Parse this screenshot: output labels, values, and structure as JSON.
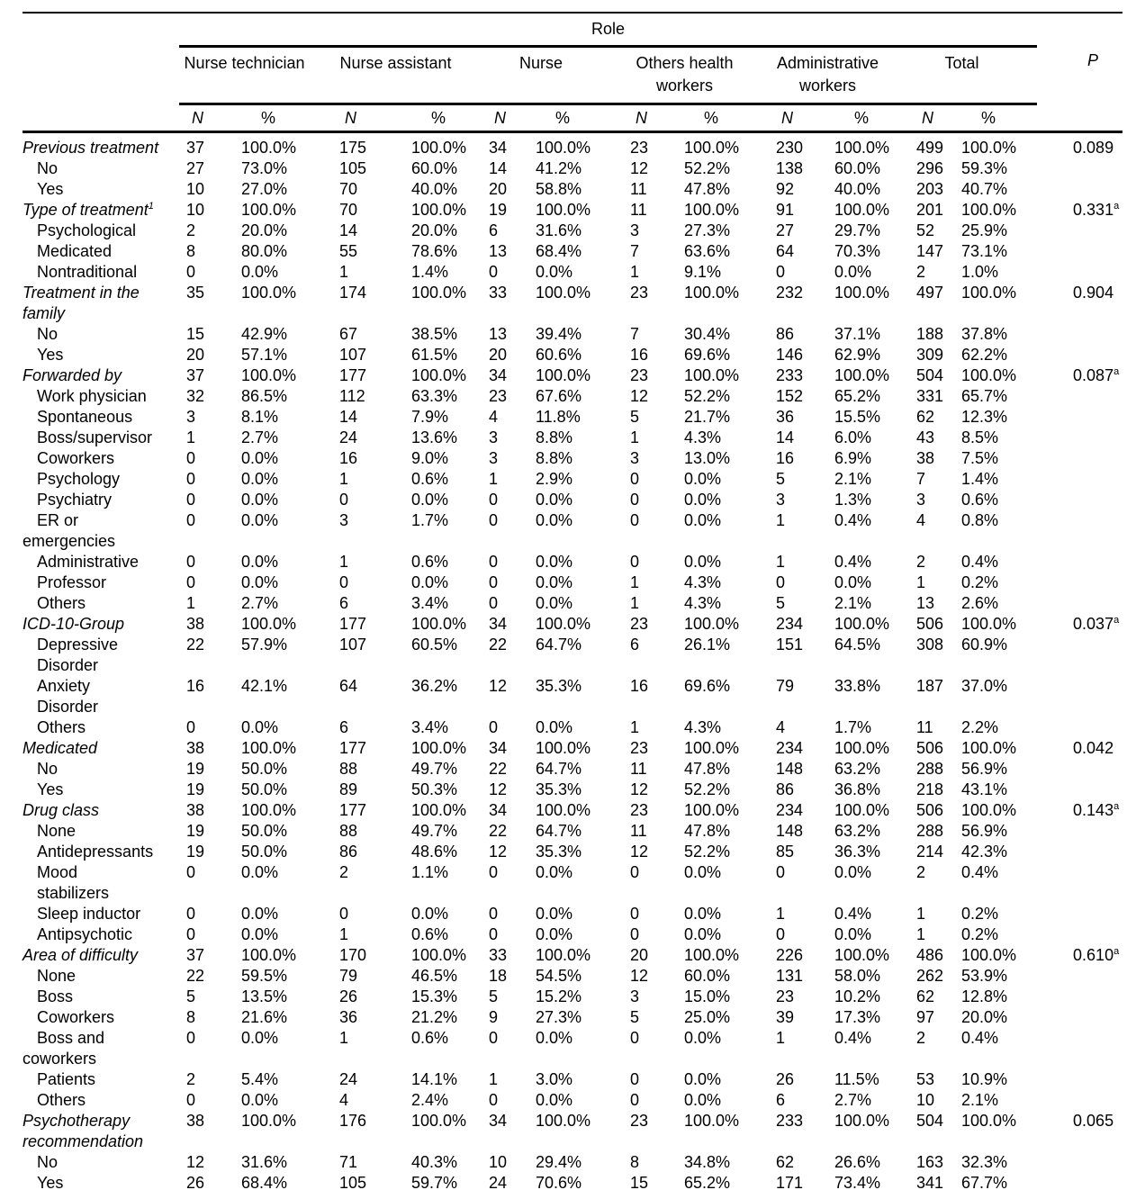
{
  "table": {
    "header": {
      "role_label": "Role",
      "n_label": "N",
      "pct_label": "%",
      "p_label": "P",
      "groups": [
        {
          "line1": "Nurse technician",
          "line2": ""
        },
        {
          "line1": "Nurse assistant",
          "line2": ""
        },
        {
          "line1": "Nurse",
          "line2": ""
        },
        {
          "line1": "Others health",
          "line2": "workers"
        },
        {
          "line1": "Administrative",
          "line2": "workers"
        },
        {
          "line1": "Total",
          "line2": ""
        }
      ]
    },
    "rows": [
      {
        "t": "cat",
        "label": "Previous treatment",
        "v": [
          "37",
          "100.0%",
          "175",
          "100.0%",
          "34",
          "100.0%",
          "23",
          "100.0%",
          "230",
          "100.0%",
          "499",
          "100.0%"
        ],
        "p": "0.089"
      },
      {
        "t": "sub",
        "label": "No",
        "v": [
          "27",
          "73.0%",
          "105",
          "60.0%",
          "14",
          "41.2%",
          "12",
          "52.2%",
          "138",
          "60.0%",
          "296",
          "59.3%"
        ]
      },
      {
        "t": "sub",
        "label": "Yes",
        "v": [
          "10",
          "27.0%",
          "70",
          "40.0%",
          "20",
          "58.8%",
          "11",
          "47.8%",
          "92",
          "40.0%",
          "203",
          "40.7%"
        ]
      },
      {
        "t": "cat",
        "label": "Type of treatment",
        "sup": "1",
        "v": [
          "10",
          "100.0%",
          "70",
          "100.0%",
          "19",
          "100.0%",
          "11",
          "100.0%",
          "91",
          "100.0%",
          "201",
          "100.0%"
        ],
        "p": "0.331",
        "psup": "a"
      },
      {
        "t": "sub",
        "label": "Psychological",
        "v": [
          "2",
          "20.0%",
          "14",
          "20.0%",
          "6",
          "31.6%",
          "3",
          "27.3%",
          "27",
          "29.7%",
          "52",
          "25.9%"
        ]
      },
      {
        "t": "sub",
        "label": "Medicated",
        "v": [
          "8",
          "80.0%",
          "55",
          "78.6%",
          "13",
          "68.4%",
          "7",
          "63.6%",
          "64",
          "70.3%",
          "147",
          "73.1%"
        ]
      },
      {
        "t": "sub",
        "label": "Nontraditional",
        "v": [
          "0",
          "0.0%",
          "1",
          "1.4%",
          "0",
          "0.0%",
          "1",
          "9.1%",
          "0",
          "0.0%",
          "2",
          "1.0%"
        ]
      },
      {
        "t": "cat",
        "label": "Treatment in the",
        "label2": "family",
        "out": true,
        "v": [
          "35",
          "100.0%",
          "174",
          "100.0%",
          "33",
          "100.0%",
          "23",
          "100.0%",
          "232",
          "100.0%",
          "497",
          "100.0%"
        ],
        "p": "0.904"
      },
      {
        "t": "sub",
        "label": "No",
        "v": [
          "15",
          "42.9%",
          "67",
          "38.5%",
          "13",
          "39.4%",
          "7",
          "30.4%",
          "86",
          "37.1%",
          "188",
          "37.8%"
        ]
      },
      {
        "t": "sub",
        "label": "Yes",
        "v": [
          "20",
          "57.1%",
          "107",
          "61.5%",
          "20",
          "60.6%",
          "16",
          "69.6%",
          "146",
          "62.9%",
          "309",
          "62.2%"
        ]
      },
      {
        "t": "cat",
        "label": "Forwarded by",
        "v": [
          "37",
          "100.0%",
          "177",
          "100.0%",
          "34",
          "100.0%",
          "23",
          "100.0%",
          "233",
          "100.0%",
          "504",
          "100.0%"
        ],
        "p": "0.087",
        "psup": "a"
      },
      {
        "t": "sub",
        "label": "Work physician",
        "v": [
          "32",
          "86.5%",
          "112",
          "63.3%",
          "23",
          "67.6%",
          "12",
          "52.2%",
          "152",
          "65.2%",
          "331",
          "65.7%"
        ]
      },
      {
        "t": "sub",
        "label": "Spontaneous",
        "v": [
          "3",
          "8.1%",
          "14",
          "7.9%",
          "4",
          "11.8%",
          "5",
          "21.7%",
          "36",
          "15.5%",
          "62",
          "12.3%"
        ]
      },
      {
        "t": "sub",
        "label": "Boss/supervisor",
        "v": [
          "1",
          "2.7%",
          "24",
          "13.6%",
          "3",
          "8.8%",
          "1",
          "4.3%",
          "14",
          "6.0%",
          "43",
          "8.5%"
        ]
      },
      {
        "t": "sub",
        "label": "Coworkers",
        "v": [
          "0",
          "0.0%",
          "16",
          "9.0%",
          "3",
          "8.8%",
          "3",
          "13.0%",
          "16",
          "6.9%",
          "38",
          "7.5%"
        ]
      },
      {
        "t": "sub",
        "label": "Psychology",
        "v": [
          "0",
          "0.0%",
          "1",
          "0.6%",
          "1",
          "2.9%",
          "0",
          "0.0%",
          "5",
          "2.1%",
          "7",
          "1.4%"
        ]
      },
      {
        "t": "sub",
        "label": "Psychiatry",
        "v": [
          "0",
          "0.0%",
          "0",
          "0.0%",
          "0",
          "0.0%",
          "0",
          "0.0%",
          "3",
          "1.3%",
          "3",
          "0.6%"
        ]
      },
      {
        "t": "sub",
        "label": "ER or",
        "label2": "emergencies",
        "out": true,
        "v": [
          "0",
          "0.0%",
          "3",
          "1.7%",
          "0",
          "0.0%",
          "0",
          "0.0%",
          "1",
          "0.4%",
          "4",
          "0.8%"
        ]
      },
      {
        "t": "sub",
        "label": "Administrative",
        "v": [
          "0",
          "0.0%",
          "1",
          "0.6%",
          "0",
          "0.0%",
          "0",
          "0.0%",
          "1",
          "0.4%",
          "2",
          "0.4%"
        ]
      },
      {
        "t": "sub",
        "label": "Professor",
        "v": [
          "0",
          "0.0%",
          "0",
          "0.0%",
          "0",
          "0.0%",
          "1",
          "4.3%",
          "0",
          "0.0%",
          "1",
          "0.2%"
        ]
      },
      {
        "t": "sub",
        "label": "Others",
        "v": [
          "1",
          "2.7%",
          "6",
          "3.4%",
          "0",
          "0.0%",
          "1",
          "4.3%",
          "5",
          "2.1%",
          "13",
          "2.6%"
        ]
      },
      {
        "t": "cat",
        "label": "ICD-10-Group",
        "v": [
          "38",
          "100.0%",
          "177",
          "100.0%",
          "34",
          "100.0%",
          "23",
          "100.0%",
          "234",
          "100.0%",
          "506",
          "100.0%"
        ],
        "p": "0.037",
        "psup": "a"
      },
      {
        "t": "sub",
        "label": "Depressive",
        "label2": "Disorder",
        "v": [
          "22",
          "57.9%",
          "107",
          "60.5%",
          "22",
          "64.7%",
          "6",
          "26.1%",
          "151",
          "64.5%",
          "308",
          "60.9%"
        ]
      },
      {
        "t": "sub",
        "label": "Anxiety",
        "label2": "Disorder",
        "v": [
          "16",
          "42.1%",
          "64",
          "36.2%",
          "12",
          "35.3%",
          "16",
          "69.6%",
          "79",
          "33.8%",
          "187",
          "37.0%"
        ]
      },
      {
        "t": "sub",
        "label": "Others",
        "v": [
          "0",
          "0.0%",
          "6",
          "3.4%",
          "0",
          "0.0%",
          "1",
          "4.3%",
          "4",
          "1.7%",
          "11",
          "2.2%"
        ]
      },
      {
        "t": "cat",
        "label": "Medicated",
        "v": [
          "38",
          "100.0%",
          "177",
          "100.0%",
          "34",
          "100.0%",
          "23",
          "100.0%",
          "234",
          "100.0%",
          "506",
          "100.0%"
        ],
        "p": "0.042"
      },
      {
        "t": "sub",
        "label": "No",
        "v": [
          "19",
          "50.0%",
          "88",
          "49.7%",
          "22",
          "64.7%",
          "11",
          "47.8%",
          "148",
          "63.2%",
          "288",
          "56.9%"
        ]
      },
      {
        "t": "sub",
        "label": "Yes",
        "v": [
          "19",
          "50.0%",
          "89",
          "50.3%",
          "12",
          "35.3%",
          "12",
          "52.2%",
          "86",
          "36.8%",
          "218",
          "43.1%"
        ]
      },
      {
        "t": "cat",
        "label": "Drug class",
        "v": [
          "38",
          "100.0%",
          "177",
          "100.0%",
          "34",
          "100.0%",
          "23",
          "100.0%",
          "234",
          "100.0%",
          "506",
          "100.0%"
        ],
        "p": "0.143",
        "psup": "a"
      },
      {
        "t": "sub",
        "label": "None",
        "v": [
          "19",
          "50.0%",
          "88",
          "49.7%",
          "22",
          "64.7%",
          "11",
          "47.8%",
          "148",
          "63.2%",
          "288",
          "56.9%"
        ]
      },
      {
        "t": "sub",
        "label": "Antidepressants",
        "v": [
          "19",
          "50.0%",
          "86",
          "48.6%",
          "12",
          "35.3%",
          "12",
          "52.2%",
          "85",
          "36.3%",
          "214",
          "42.3%"
        ]
      },
      {
        "t": "sub",
        "label": "Mood",
        "label2": "stabilizers",
        "v": [
          "0",
          "0.0%",
          "2",
          "1.1%",
          "0",
          "0.0%",
          "0",
          "0.0%",
          "0",
          "0.0%",
          "2",
          "0.4%"
        ]
      },
      {
        "t": "sub",
        "label": "Sleep inductor",
        "v": [
          "0",
          "0.0%",
          "0",
          "0.0%",
          "0",
          "0.0%",
          "0",
          "0.0%",
          "1",
          "0.4%",
          "1",
          "0.2%"
        ]
      },
      {
        "t": "sub",
        "label": "Antipsychotic",
        "v": [
          "0",
          "0.0%",
          "1",
          "0.6%",
          "0",
          "0.0%",
          "0",
          "0.0%",
          "0",
          "0.0%",
          "1",
          "0.2%"
        ]
      },
      {
        "t": "cat",
        "label": "Area of difficulty",
        "v": [
          "37",
          "100.0%",
          "170",
          "100.0%",
          "33",
          "100.0%",
          "20",
          "100.0%",
          "226",
          "100.0%",
          "486",
          "100.0%"
        ],
        "p": "0.610",
        "psup": "a"
      },
      {
        "t": "sub",
        "label": "None",
        "v": [
          "22",
          "59.5%",
          "79",
          "46.5%",
          "18",
          "54.5%",
          "12",
          "60.0%",
          "131",
          "58.0%",
          "262",
          "53.9%"
        ]
      },
      {
        "t": "sub",
        "label": "Boss",
        "v": [
          "5",
          "13.5%",
          "26",
          "15.3%",
          "5",
          "15.2%",
          "3",
          "15.0%",
          "23",
          "10.2%",
          "62",
          "12.8%"
        ]
      },
      {
        "t": "sub",
        "label": "Coworkers",
        "v": [
          "8",
          "21.6%",
          "36",
          "21.2%",
          "9",
          "27.3%",
          "5",
          "25.0%",
          "39",
          "17.3%",
          "97",
          "20.0%"
        ]
      },
      {
        "t": "sub",
        "label": "Boss and",
        "label2": "coworkers",
        "out": true,
        "v": [
          "0",
          "0.0%",
          "1",
          "0.6%",
          "0",
          "0.0%",
          "0",
          "0.0%",
          "1",
          "0.4%",
          "2",
          "0.4%"
        ]
      },
      {
        "t": "sub",
        "label": "Patients",
        "v": [
          "2",
          "5.4%",
          "24",
          "14.1%",
          "1",
          "3.0%",
          "0",
          "0.0%",
          "26",
          "11.5%",
          "53",
          "10.9%"
        ]
      },
      {
        "t": "sub",
        "label": "Others",
        "v": [
          "0",
          "0.0%",
          "4",
          "2.4%",
          "0",
          "0.0%",
          "0",
          "0.0%",
          "6",
          "2.7%",
          "10",
          "2.1%"
        ]
      },
      {
        "t": "cat",
        "label": "Psychotherapy",
        "label2": "recommendation",
        "out": true,
        "v": [
          "38",
          "100.0%",
          "176",
          "100.0%",
          "34",
          "100.0%",
          "23",
          "100.0%",
          "233",
          "100.0%",
          "504",
          "100.0%"
        ],
        "p": "0.065"
      },
      {
        "t": "sub",
        "label": "No",
        "v": [
          "12",
          "31.6%",
          "71",
          "40.3%",
          "10",
          "29.4%",
          "8",
          "34.8%",
          "62",
          "26.6%",
          "163",
          "32.3%"
        ]
      },
      {
        "t": "sub",
        "label": "Yes",
        "v": [
          "26",
          "68.4%",
          "105",
          "59.7%",
          "24",
          "70.6%",
          "15",
          "65.2%",
          "171",
          "73.4%",
          "341",
          "67.7%"
        ]
      }
    ]
  }
}
